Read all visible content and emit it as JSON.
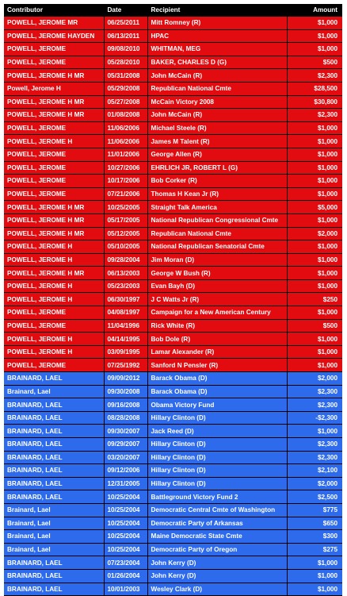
{
  "table": {
    "headers": {
      "contributor": "Contributor",
      "date": "Date",
      "recipient": "Recipient",
      "amount": "Amount"
    },
    "colors": {
      "header": "#000000",
      "republican_rows": "#e20b10",
      "democratic_rows": "#2d6bec",
      "text": "#ffffff"
    },
    "rows": [
      {
        "party": "rep",
        "contributor": "POWELL, JEROME MR",
        "date": "06/25/2011",
        "recipient": "Mitt Romney (R)",
        "amount": "$1,000"
      },
      {
        "party": "rep",
        "contributor": "POWELL, JEROME HAYDEN",
        "date": "06/13/2011",
        "recipient": "HPAC",
        "amount": "$1,000"
      },
      {
        "party": "rep",
        "contributor": "POWELL, JEROME",
        "date": "09/08/2010",
        "recipient": "WHITMAN, MEG",
        "amount": "$1,000"
      },
      {
        "party": "rep",
        "contributor": "POWELL, JEROME",
        "date": "05/28/2010",
        "recipient": "BAKER, CHARLES D (G)",
        "amount": "$500"
      },
      {
        "party": "rep",
        "contributor": "POWELL, JEROME H MR",
        "date": "05/31/2008",
        "recipient": "John McCain (R)",
        "amount": "$2,300"
      },
      {
        "party": "rep",
        "contributor": "Powell, Jerome H",
        "date": "05/29/2008",
        "recipient": "Republican National Cmte",
        "amount": "$28,500"
      },
      {
        "party": "rep",
        "contributor": "POWELL, JEROME H MR",
        "date": "05/27/2008",
        "recipient": "McCain Victory 2008",
        "amount": "$30,800"
      },
      {
        "party": "rep",
        "contributor": "POWELL, JEROME H MR",
        "date": "01/08/2008",
        "recipient": "John McCain (R)",
        "amount": "$2,300"
      },
      {
        "party": "rep",
        "contributor": "POWELL, JEROME",
        "date": "11/06/2006",
        "recipient": "Michael Steele (R)",
        "amount": "$1,000"
      },
      {
        "party": "rep",
        "contributor": "POWELL, JEROME H",
        "date": "11/06/2006",
        "recipient": "James M Talent (R)",
        "amount": "$1,000"
      },
      {
        "party": "rep",
        "contributor": "POWELL, JEROME",
        "date": "11/01/2006",
        "recipient": "George Allen (R)",
        "amount": "$1,000"
      },
      {
        "party": "rep",
        "contributor": "POWELL, JEROME",
        "date": "10/27/2006",
        "recipient": "EHRLICH JR, ROBERT L (G)",
        "amount": "$1,000"
      },
      {
        "party": "rep",
        "contributor": "POWELL, JEROME",
        "date": "10/17/2006",
        "recipient": "Bob Corker (R)",
        "amount": "$1,000"
      },
      {
        "party": "rep",
        "contributor": "POWELL, JEROME",
        "date": "07/21/2006",
        "recipient": "Thomas H Kean Jr (R)",
        "amount": "$1,000"
      },
      {
        "party": "rep",
        "contributor": "POWELL, JEROME H MR",
        "date": "10/25/2005",
        "recipient": "Straight Talk America",
        "amount": "$5,000"
      },
      {
        "party": "rep",
        "contributor": "POWELL, JEROME H MR",
        "date": "05/17/2005",
        "recipient": "National Republican Congressional Cmte",
        "amount": "$1,000"
      },
      {
        "party": "rep",
        "contributor": "POWELL, JEROME H MR",
        "date": "05/12/2005",
        "recipient": "Republican National Cmte",
        "amount": "$2,000"
      },
      {
        "party": "rep",
        "contributor": "POWELL, JEROME H",
        "date": "05/10/2005",
        "recipient": "National Republican Senatorial Cmte",
        "amount": "$1,000"
      },
      {
        "party": "rep",
        "contributor": "POWELL, JEROME H",
        "date": "09/28/2004",
        "recipient": "Jim Moran (D)",
        "amount": "$1,000"
      },
      {
        "party": "rep",
        "contributor": "POWELL, JEROME H MR",
        "date": "06/13/2003",
        "recipient": "George W Bush (R)",
        "amount": "$1,000"
      },
      {
        "party": "rep",
        "contributor": "POWELL, JEROME H",
        "date": "05/23/2003",
        "recipient": "Evan Bayh (D)",
        "amount": "$1,000"
      },
      {
        "party": "rep",
        "contributor": "POWELL, JEROME H",
        "date": "06/30/1997",
        "recipient": "J C Watts Jr (R)",
        "amount": "$250"
      },
      {
        "party": "rep",
        "contributor": "POWELL, JEROME",
        "date": "04/08/1997",
        "recipient": "Campaign for a New American Century",
        "amount": "$1,000"
      },
      {
        "party": "rep",
        "contributor": "POWELL, JEROME",
        "date": "11/04/1996",
        "recipient": "Rick White (R)",
        "amount": "$500"
      },
      {
        "party": "rep",
        "contributor": "POWELL, JEROME H",
        "date": "04/14/1995",
        "recipient": "Bob Dole (R)",
        "amount": "$1,000"
      },
      {
        "party": "rep",
        "contributor": "POWELL, JEROME H",
        "date": "03/09/1995",
        "recipient": "Lamar Alexander (R)",
        "amount": "$1,000"
      },
      {
        "party": "rep",
        "contributor": "POWELL, JEROME",
        "date": "07/25/1992",
        "recipient": "Sanford N Pensler (R)",
        "amount": "$1,000"
      },
      {
        "party": "dem",
        "contributor": "BRAINARD, LAEL",
        "date": "09/09/2012",
        "recipient": "Barack Obama (D)",
        "amount": "$2,000"
      },
      {
        "party": "dem",
        "contributor": "Brainard, Lael",
        "date": "09/30/2008",
        "recipient": "Barack Obama (D)",
        "amount": "$2,300"
      },
      {
        "party": "dem",
        "contributor": "BRAINARD, LAEL",
        "date": "09/16/2008",
        "recipient": "Obama Victory Fund",
        "amount": "$2,300"
      },
      {
        "party": "dem",
        "contributor": "BRAINARD, LAEL",
        "date": "08/28/2008",
        "recipient": "Hillary Clinton (D)",
        "amount": "-$2,300"
      },
      {
        "party": "dem",
        "contributor": "BRAINARD, LAEL",
        "date": "09/30/2007",
        "recipient": "Jack Reed (D)",
        "amount": "$1,000"
      },
      {
        "party": "dem",
        "contributor": "BRAINARD, LAEL",
        "date": "09/29/2007",
        "recipient": "Hillary Clinton (D)",
        "amount": "$2,300"
      },
      {
        "party": "dem",
        "contributor": "BRAINARD, LAEL",
        "date": "03/20/2007",
        "recipient": "Hillary Clinton (D)",
        "amount": "$2,300"
      },
      {
        "party": "dem",
        "contributor": "BRAINARD, LAEL",
        "date": "09/12/2006",
        "recipient": "Hillary Clinton (D)",
        "amount": "$2,100"
      },
      {
        "party": "dem",
        "contributor": "BRAINARD, LAEL",
        "date": "12/31/2005",
        "recipient": "Hillary Clinton (D)",
        "amount": "$2,000"
      },
      {
        "party": "dem",
        "contributor": "BRAINARD, LAEL",
        "date": "10/25/2004",
        "recipient": "Battleground Victory Fund 2",
        "amount": "$2,500"
      },
      {
        "party": "dem",
        "contributor": "Brainard, Lael",
        "date": "10/25/2004",
        "recipient": "Democratic Central Cmte of Washington",
        "amount": "$775"
      },
      {
        "party": "dem",
        "contributor": "Brainard, Lael",
        "date": "10/25/2004",
        "recipient": "Democratic Party of Arkansas",
        "amount": "$650"
      },
      {
        "party": "dem",
        "contributor": "Brainard, Lael",
        "date": "10/25/2004",
        "recipient": "Maine Democratic State Cmte",
        "amount": "$300"
      },
      {
        "party": "dem",
        "contributor": "Brainard, Lael",
        "date": "10/25/2004",
        "recipient": "Democratic Party of Oregon",
        "amount": "$275"
      },
      {
        "party": "dem",
        "contributor": "BRAINARD, LAEL",
        "date": "07/23/2004",
        "recipient": "John Kerry (D)",
        "amount": "$1,000"
      },
      {
        "party": "dem",
        "contributor": "BRAINARD, LAEL",
        "date": "01/26/2004",
        "recipient": "John Kerry (D)",
        "amount": "$1,000"
      },
      {
        "party": "dem",
        "contributor": "BRAINARD, LAEL",
        "date": "10/01/2003",
        "recipient": "Wesley Clark (D)",
        "amount": "$1,000"
      }
    ]
  }
}
